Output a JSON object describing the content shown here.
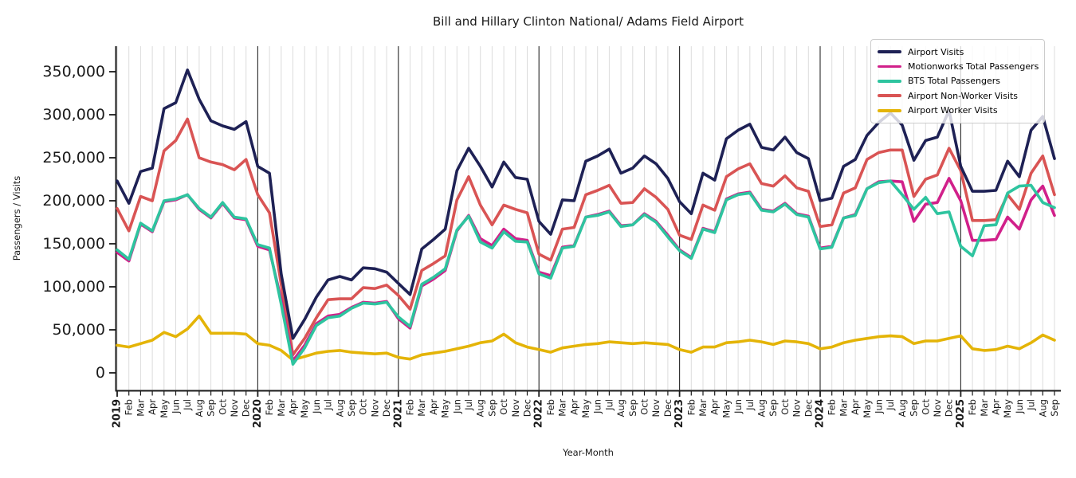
{
  "chart_data": {
    "type": "line",
    "title": "Bill and Hillary Clinton National/ Adams Field Airport",
    "xlabel": "Year-Month",
    "ylabel": "Passengers / Visits",
    "ylim": [
      -20000,
      378000
    ],
    "yticks": [
      0,
      50000,
      100000,
      150000,
      200000,
      250000,
      300000,
      350000
    ],
    "grid": "light vertical gridline per month; dark vertical separator at each January",
    "legend_position": "upper right",
    "month_abbrev": [
      "Jan",
      "Feb",
      "Mar",
      "Apr",
      "May",
      "Jun",
      "Jul",
      "Aug",
      "Sep",
      "Oct",
      "Nov",
      "Dec"
    ],
    "x": [
      "2019-01",
      "2019-02",
      "2019-03",
      "2019-04",
      "2019-05",
      "2019-06",
      "2019-07",
      "2019-08",
      "2019-09",
      "2019-10",
      "2019-11",
      "2019-12",
      "2020-01",
      "2020-02",
      "2020-03",
      "2020-04",
      "2020-05",
      "2020-06",
      "2020-07",
      "2020-08",
      "2020-09",
      "2020-10",
      "2020-11",
      "2020-12",
      "2021-01",
      "2021-02",
      "2021-03",
      "2021-04",
      "2021-05",
      "2021-06",
      "2021-07",
      "2021-08",
      "2021-09",
      "2021-10",
      "2021-11",
      "2021-12",
      "2022-01",
      "2022-02",
      "2022-03",
      "2022-04",
      "2022-05",
      "2022-06",
      "2022-07",
      "2022-08",
      "2022-09",
      "2022-10",
      "2022-11",
      "2022-12",
      "2023-01",
      "2023-02",
      "2023-03",
      "2023-04",
      "2023-05",
      "2023-06",
      "2023-07",
      "2023-08",
      "2023-09",
      "2023-10",
      "2023-11",
      "2023-12",
      "2024-01",
      "2024-02",
      "2024-03",
      "2024-04",
      "2024-05",
      "2024-06",
      "2024-07",
      "2024-08",
      "2024-09",
      "2024-10",
      "2024-11",
      "2024-12",
      "2025-01",
      "2025-02",
      "2025-03",
      "2025-04",
      "2025-05",
      "2025-06",
      "2025-07",
      "2025-08",
      "2025-09"
    ],
    "series": [
      {
        "name": "Airport Visits",
        "color": "#1e2155",
        "values": [
          223000,
          197000,
          234000,
          238000,
          307000,
          314000,
          352000,
          318000,
          293000,
          287000,
          283000,
          292000,
          240000,
          232000,
          115000,
          40000,
          62000,
          88000,
          108000,
          112000,
          108000,
          122000,
          121000,
          117000,
          104000,
          91000,
          144000,
          155000,
          167000,
          235000,
          261000,
          240000,
          216000,
          245000,
          227000,
          225000,
          176000,
          161000,
          201000,
          200000,
          246000,
          252000,
          260000,
          232000,
          238000,
          252000,
          243000,
          226000,
          199000,
          185000,
          232000,
          224000,
          272000,
          282000,
          289000,
          262000,
          259000,
          274000,
          256000,
          249000,
          200000,
          203000,
          240000,
          248000,
          276000,
          291000,
          302000,
          288000,
          247000,
          270000,
          274000,
          305000,
          240000,
          211000,
          211000,
          212000,
          246000,
          228000,
          282000,
          298000,
          249000
        ]
      },
      {
        "name": "Motionworks Total Passengers",
        "color": "#d1208a",
        "values": [
          140000,
          130000,
          173000,
          164000,
          199000,
          201000,
          207000,
          190000,
          180000,
          197000,
          180000,
          178000,
          147000,
          143000,
          85000,
          14000,
          32000,
          57000,
          66000,
          68000,
          76000,
          82000,
          81000,
          83000,
          63000,
          52000,
          101000,
          109000,
          119000,
          165000,
          183000,
          156000,
          148000,
          167000,
          156000,
          154000,
          117000,
          113000,
          146000,
          148000,
          181000,
          184000,
          188000,
          171000,
          172000,
          185000,
          176000,
          160000,
          143000,
          134000,
          168000,
          164000,
          202000,
          208000,
          210000,
          190000,
          188000,
          197000,
          185000,
          182000,
          145000,
          147000,
          180000,
          184000,
          214000,
          222000,
          223000,
          222000,
          176000,
          196000,
          198000,
          226000,
          200000,
          154000,
          154000,
          155000,
          181000,
          167000,
          201000,
          217000,
          183000
        ]
      },
      {
        "name": "BTS Total Passengers",
        "color": "#2ec49f",
        "values": [
          143000,
          132000,
          174000,
          165000,
          200000,
          202000,
          207000,
          191000,
          181000,
          198000,
          181000,
          179000,
          149000,
          145000,
          80000,
          10000,
          29000,
          55000,
          64000,
          66000,
          75000,
          81000,
          80000,
          82000,
          65000,
          54000,
          103000,
          111000,
          121000,
          166000,
          182000,
          152000,
          145000,
          164000,
          153000,
          152000,
          115000,
          110000,
          145000,
          147000,
          181000,
          183000,
          187000,
          170000,
          172000,
          184000,
          175000,
          158000,
          142000,
          133000,
          167000,
          163000,
          201000,
          207000,
          209000,
          189000,
          187000,
          196000,
          184000,
          181000,
          144000,
          146000,
          180000,
          183000,
          214000,
          221000,
          223000,
          207000,
          190000,
          204000,
          185000,
          187000,
          147000,
          136000,
          171000,
          172000,
          209000,
          217000,
          218000,
          198000,
          192000
        ]
      },
      {
        "name": "Airport Non-Worker Visits",
        "color": "#d95454",
        "values": [
          191000,
          165000,
          205000,
          200000,
          258000,
          270000,
          295000,
          250000,
          245000,
          242000,
          236000,
          248000,
          207000,
          186000,
          103000,
          21000,
          40000,
          64000,
          85000,
          86000,
          86000,
          99000,
          98000,
          102000,
          90000,
          74000,
          119000,
          127000,
          136000,
          201000,
          228000,
          195000,
          172000,
          195000,
          190000,
          186000,
          138000,
          131000,
          167000,
          169000,
          207000,
          212000,
          218000,
          197000,
          198000,
          214000,
          204000,
          190000,
          160000,
          155000,
          195000,
          189000,
          228000,
          237000,
          243000,
          220000,
          217000,
          229000,
          215000,
          211000,
          170000,
          172000,
          209000,
          215000,
          248000,
          256000,
          259000,
          259000,
          205000,
          225000,
          230000,
          261000,
          235000,
          177000,
          177000,
          178000,
          207000,
          190000,
          232000,
          252000,
          207000
        ]
      },
      {
        "name": "Airport Worker Visits",
        "color": "#e4b407",
        "values": [
          32000,
          30000,
          34000,
          38000,
          47000,
          42000,
          51000,
          66000,
          46000,
          46000,
          46000,
          45000,
          34000,
          32000,
          26000,
          15000,
          19000,
          23000,
          25000,
          26000,
          24000,
          23000,
          22000,
          23000,
          18000,
          16000,
          21000,
          23000,
          25000,
          28000,
          31000,
          35000,
          37000,
          45000,
          35000,
          30000,
          27000,
          24000,
          29000,
          31000,
          33000,
          34000,
          36000,
          35000,
          34000,
          35000,
          34000,
          33000,
          27000,
          24000,
          30000,
          30000,
          35000,
          36000,
          38000,
          36000,
          33000,
          37000,
          36000,
          34000,
          28000,
          30000,
          35000,
          38000,
          40000,
          42000,
          43000,
          42000,
          34000,
          37000,
          37000,
          40000,
          43000,
          28000,
          26000,
          27000,
          31000,
          28000,
          35000,
          44000,
          38000
        ]
      }
    ]
  }
}
